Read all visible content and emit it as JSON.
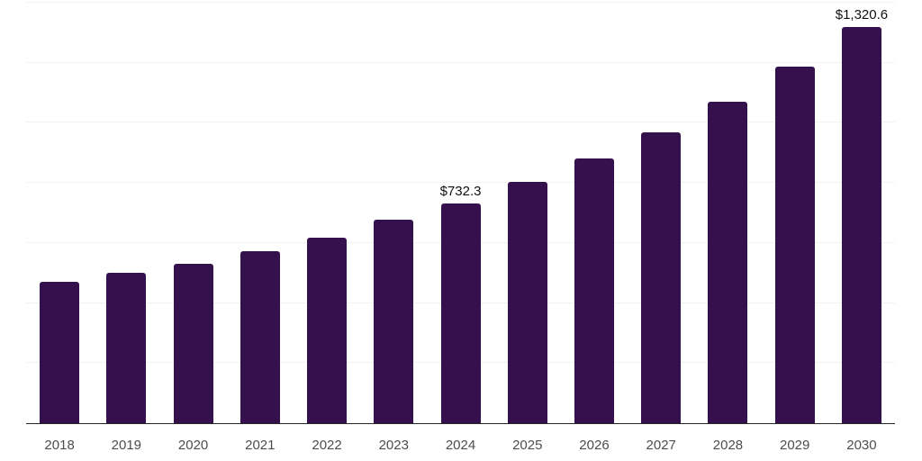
{
  "chart_data": {
    "type": "bar",
    "title": "",
    "xlabel": "",
    "ylabel": "",
    "categories": [
      "2018",
      "2019",
      "2020",
      "2021",
      "2022",
      "2023",
      "2024",
      "2025",
      "2026",
      "2027",
      "2028",
      "2029",
      "2030"
    ],
    "values": [
      472,
      501,
      532,
      572,
      619,
      678,
      732.3,
      803,
      880,
      968,
      1069,
      1187,
      1320.6
    ],
    "bar_labels": [
      "",
      "",
      "",
      "",
      "",
      "",
      "$732.3",
      "",
      "",
      "",
      "",
      "",
      "$1,320.6"
    ],
    "ylim": [
      0,
      1400
    ],
    "gridline_step": 200,
    "grid": "horizontal",
    "legend": false,
    "colors": {
      "bar": "#34114d",
      "axis": "#262626",
      "gridline": "#f2f2f2",
      "value_label": "#111111",
      "tick_label": "#4d4d4d",
      "background": "#ffffff"
    }
  }
}
